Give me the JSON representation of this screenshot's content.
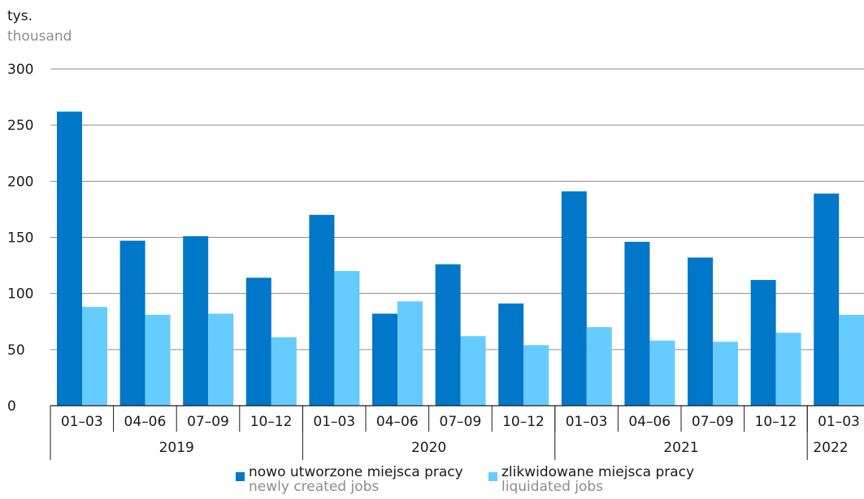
{
  "unit": {
    "pl": "tys.",
    "en": "thousand"
  },
  "colors": {
    "new": "#0077c8",
    "liquidated": "#66ccff",
    "grid": "#8c8c8c",
    "axis": "#1a1a1a"
  },
  "legend": {
    "new": {
      "pl": "nowo utworzone miejsca pracy",
      "en": "newly created jobs"
    },
    "liquidated": {
      "pl": "zlikwidowane miejsca pracy",
      "en": "liquidated jobs"
    }
  },
  "chart_data": {
    "type": "bar",
    "y_ticks": [
      0,
      50,
      100,
      150,
      200,
      250,
      300
    ],
    "ylim": [
      0,
      300
    ],
    "grid": true,
    "legend_position": "bottom",
    "categories": [
      "01–03",
      "04–06",
      "07–09",
      "10–12",
      "01–03",
      "04–06",
      "07–09",
      "10–12",
      "01–03",
      "04–06",
      "07–09",
      "10–12",
      "01–03"
    ],
    "years": [
      {
        "label": "2019",
        "count": 4
      },
      {
        "label": "2020",
        "count": 4
      },
      {
        "label": "2021",
        "count": 4
      },
      {
        "label": "2022",
        "count": 1
      }
    ],
    "series": [
      {
        "name": "nowo utworzone miejsca pracy",
        "values": [
          262,
          147,
          151,
          114,
          170,
          82,
          126,
          91,
          191,
          146,
          132,
          112,
          189
        ]
      },
      {
        "name": "zlikwidowane miejsca pracy",
        "values": [
          88,
          81,
          82,
          61,
          120,
          93,
          62,
          54,
          70,
          58,
          57,
          65,
          81
        ]
      }
    ]
  }
}
